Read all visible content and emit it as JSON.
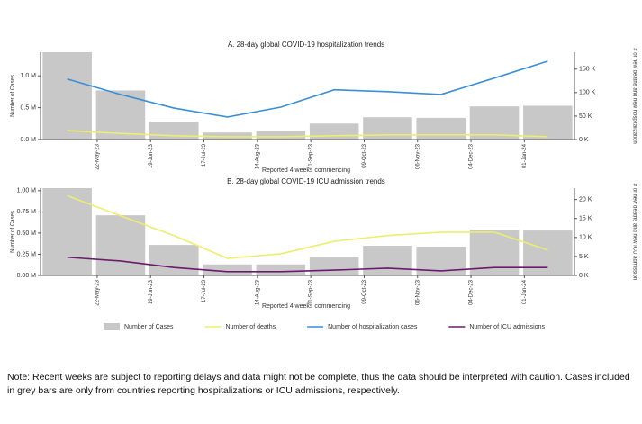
{
  "chart_data": [
    {
      "type": "bar-line",
      "title": "A. 28-day global COVID-19 hospitalization trends",
      "x_label": "Reported 4 weeks commencing",
      "y_label": "Number of Cases",
      "y2_label": "# of new deaths and new hospitalization",
      "categories": [
        null,
        "22-May-23",
        "19-Jun-23",
        "17-Jul-23",
        "14-Aug-23",
        "11-Sep-23",
        "09-Oct-23",
        "06-Nov-23",
        "04-Dec-23",
        "01-Jan-24"
      ],
      "ylim": [
        0,
        1370000
      ],
      "yticks": [
        {
          "value": 0,
          "label": "0.0 M"
        },
        {
          "value": 500000,
          "label": "0.5 M"
        },
        {
          "value": 1000000,
          "label": "1.0 M"
        }
      ],
      "y2lim": [
        0,
        186000
      ],
      "y2ticks": [
        {
          "value": 0,
          "label": "0 K"
        },
        {
          "value": 50000,
          "label": "50 K"
        },
        {
          "value": 100000,
          "label": "100 K"
        },
        {
          "value": 150000,
          "label": "150 K"
        }
      ],
      "series": [
        {
          "name": "Number of Cases",
          "kind": "bar",
          "color": "#c8c8c8",
          "values": [
            1370000,
            770000,
            280000,
            110000,
            130000,
            250000,
            350000,
            340000,
            520000,
            530000
          ]
        },
        {
          "name": "Number of deaths",
          "kind": "line",
          "axis": "y2",
          "color": "#eded6e",
          "values": [
            19000,
            13000,
            8000,
            6000,
            6000,
            8000,
            10000,
            10000,
            10000,
            6000
          ]
        },
        {
          "name": "Number of hospitalization cases",
          "kind": "line",
          "axis": "y2",
          "color": "#3b8fd6",
          "values": [
            129000,
            96000,
            67000,
            48000,
            69000,
            106000,
            102000,
            96000,
            131000,
            167000
          ]
        }
      ]
    },
    {
      "type": "bar-line",
      "title": "B. 28-day global COVID-19 ICU admission trends",
      "x_label": "Reported 4 weeks commencing",
      "y_label": "Number of Cases",
      "y2_label": "# of new deaths and new ICU admission",
      "categories": [
        null,
        "22-May-23",
        "19-Jun-23",
        "17-Jul-23",
        "14-Aug-23",
        "11-Sep-23",
        "09-Oct-23",
        "06-Nov-23",
        "04-Dec-23",
        "01-Jan-24"
      ],
      "ylim": [
        0,
        1030000
      ],
      "yticks": [
        {
          "value": 0,
          "label": "0.00 M"
        },
        {
          "value": 250000,
          "label": "0.25 M"
        },
        {
          "value": 500000,
          "label": "0.50 M"
        },
        {
          "value": 750000,
          "label": "0.75 M"
        },
        {
          "value": 1000000,
          "label": "1.00 M"
        }
      ],
      "y2lim": [
        0,
        23000
      ],
      "y2ticks": [
        {
          "value": 0,
          "label": "0 K"
        },
        {
          "value": 5000,
          "label": "5 K"
        },
        {
          "value": 10000,
          "label": "10 K"
        },
        {
          "value": 15000,
          "label": "15 K"
        },
        {
          "value": 20000,
          "label": "20 K"
        }
      ],
      "series": [
        {
          "name": "Number of Cases",
          "kind": "bar",
          "color": "#c8c8c8",
          "values": [
            1030000,
            710000,
            360000,
            130000,
            130000,
            220000,
            350000,
            340000,
            540000,
            530000
          ]
        },
        {
          "name": "Number of deaths",
          "kind": "line",
          "axis": "y2",
          "color": "#eded6e",
          "values": [
            21000,
            15700,
            10500,
            4500,
            5700,
            9000,
            10500,
            11400,
            11400,
            6700
          ]
        },
        {
          "name": "Number of ICU admissions",
          "kind": "line",
          "axis": "y2",
          "color": "#6a1b6e",
          "values": [
            4800,
            3800,
            2100,
            1000,
            1000,
            1400,
            1900,
            1200,
            2100,
            2100
          ]
        }
      ]
    }
  ],
  "note": "Note: Recent weeks are subject to reporting delays and data might not be complete, thus the data should be interpreted with caution. Cases included in grey bars are only from countries reporting hospitalizations or ICU admissions, respectively."
}
